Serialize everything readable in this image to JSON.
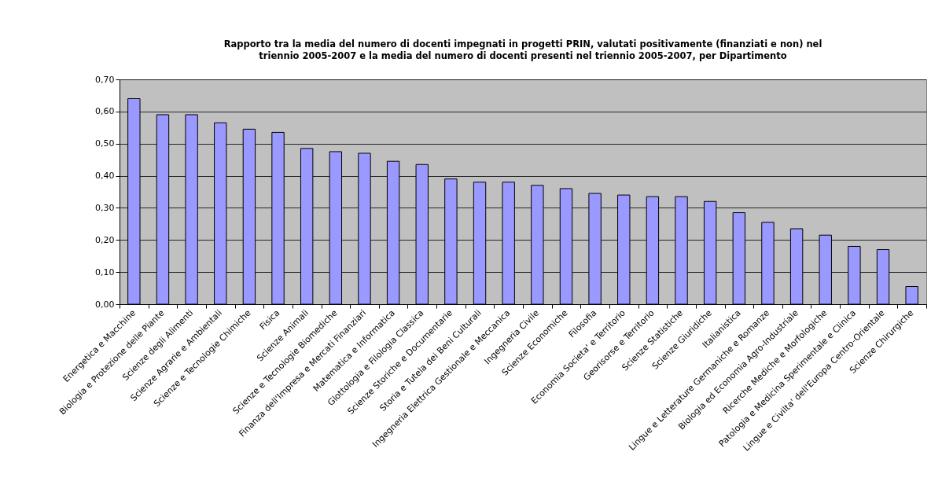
{
  "chart_data": {
    "type": "bar",
    "title": "Rapporto tra la media del numero di docenti impegnati in progetti PRIN, valutati positivamente (finanziati e non) nel\ntriennio 2005-2007 e la media del numero di docenti presenti nel triennio 2005-2007, per Dipartimento",
    "categories": [
      "Energetica e Macchine",
      "Biologia e Protezione delle Piante",
      "Scienze degli Alimenti",
      "Scienze Agrarie e Ambientali",
      "Scienze e Tecnologie Chimiche",
      "Fisica",
      "Scienze Animali",
      "Scienze e Tecnologie Biomediche",
      "Finanza dell'Impresa e Mercati Finanziari",
      "Matematica e Informatica",
      "Glottologia e Filologia Classica",
      "Scienze Storiche e Documentarie",
      "Storia e Tutela dei Beni Culturali",
      "Ingegneria Elettrica Gestionale e Meccanica",
      "Ingegneria Civile",
      "Scienze Economiche",
      "Filosofia",
      "Economia Societa' e Territorio",
      "Georisorse e Territorio",
      "Scienze Statistiche",
      "Scienze Giuridiche",
      "Italianistica",
      "Lingue e Letterature Germaniche e Romanze",
      "Biologia ed Economia Agro-Industriale",
      "Ricerche Mediche e Morfologiche",
      "Patologia e Medicina Sperimentale e Clinica",
      "Lingue e Civilta' dell'Europa Centro-Orientale",
      "Scienze Chirurgiche"
    ],
    "values": [
      0.64,
      0.59,
      0.59,
      0.565,
      0.545,
      0.535,
      0.485,
      0.475,
      0.47,
      0.445,
      0.435,
      0.39,
      0.38,
      0.38,
      0.37,
      0.36,
      0.345,
      0.34,
      0.335,
      0.335,
      0.32,
      0.285,
      0.255,
      0.235,
      0.215,
      0.18,
      0.17,
      0.055
    ],
    "color": "#9999ff",
    "ylim": [
      0,
      0.7
    ],
    "yticks": [
      {
        "value": 0,
        "label": "0,00"
      },
      {
        "value": 0.1,
        "label": "0,10"
      },
      {
        "value": 0.2,
        "label": "0,20"
      },
      {
        "value": 0.3,
        "label": "0,30"
      },
      {
        "value": 0.4,
        "label": "0,40"
      },
      {
        "value": 0.5,
        "label": "0,50"
      },
      {
        "value": 0.6,
        "label": "0,60"
      },
      {
        "value": 0.7,
        "label": "0,70"
      }
    ],
    "grid": "y"
  }
}
